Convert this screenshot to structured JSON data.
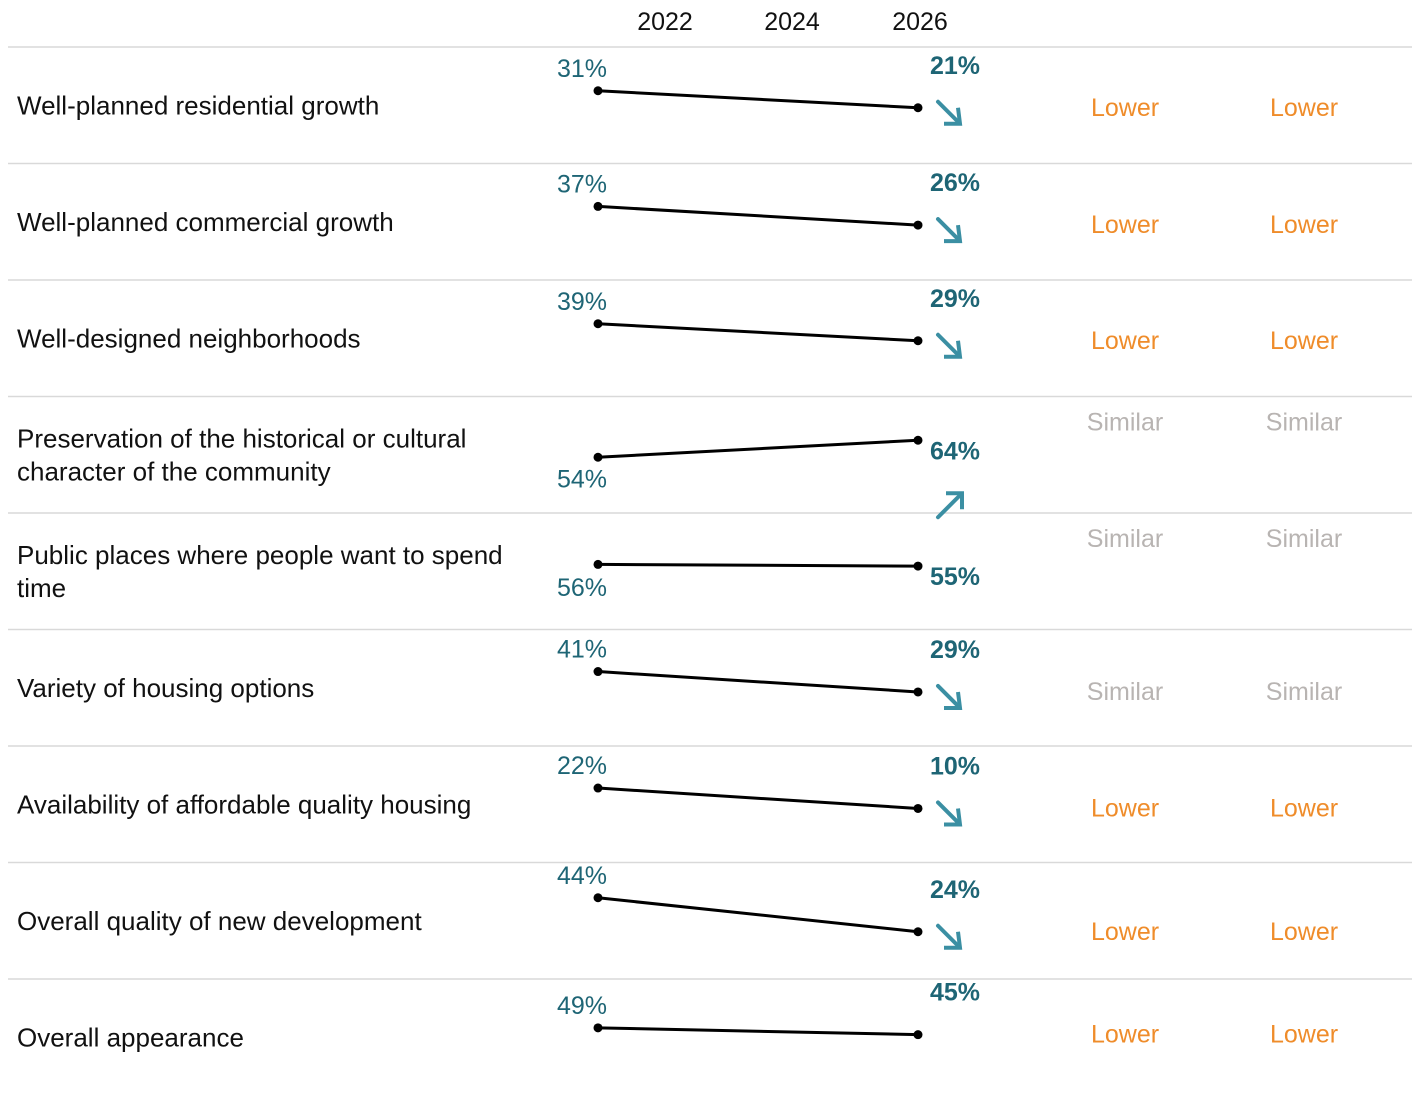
{
  "chart_data": {
    "type": "line",
    "x": [
      "2022",
      "2026"
    ],
    "x_ticks": [
      "2022",
      "2024",
      "2026"
    ],
    "value_format": "percent",
    "rows": [
      {
        "label": "Well-planned residential growth",
        "y2022": 31,
        "y2026": 21,
        "trend": "down",
        "comparison_1": "Lower",
        "comparison_2": "Lower"
      },
      {
        "label": "Well-planned commercial growth",
        "y2022": 37,
        "y2026": 26,
        "trend": "down",
        "comparison_1": "Lower",
        "comparison_2": "Lower"
      },
      {
        "label": "Well-designed neighborhoods",
        "y2022": 39,
        "y2026": 29,
        "trend": "down",
        "comparison_1": "Lower",
        "comparison_2": "Lower"
      },
      {
        "label": "Preservation of the historical or cultural character of the community",
        "y2022": 54,
        "y2026": 64,
        "trend": "up",
        "comparison_1": "Similar",
        "comparison_2": "Similar"
      },
      {
        "label": "Public places where people want to spend time",
        "y2022": 56,
        "y2026": 55,
        "trend": "none",
        "comparison_1": "Similar",
        "comparison_2": "Similar"
      },
      {
        "label": "Variety of housing options",
        "y2022": 41,
        "y2026": 29,
        "trend": "down",
        "comparison_1": "Similar",
        "comparison_2": "Similar"
      },
      {
        "label": "Availability of affordable quality housing",
        "y2022": 22,
        "y2026": 10,
        "trend": "down",
        "comparison_1": "Lower",
        "comparison_2": "Lower"
      },
      {
        "label": "Overall quality of new development",
        "y2022": 44,
        "y2026": 24,
        "trend": "down",
        "comparison_1": "Lower",
        "comparison_2": "Lower"
      },
      {
        "label": "Overall appearance",
        "y2022": 49,
        "y2026": 45,
        "trend": "none",
        "comparison_1": "Lower",
        "comparison_2": "Lower"
      }
    ]
  },
  "colors": {
    "value_text": "#1e6575",
    "arrow": "#3b8fa3",
    "line": "#000000",
    "lower": "#ef8c2a",
    "similar": "#b8b4b2",
    "divider": "#d9d9d9"
  }
}
